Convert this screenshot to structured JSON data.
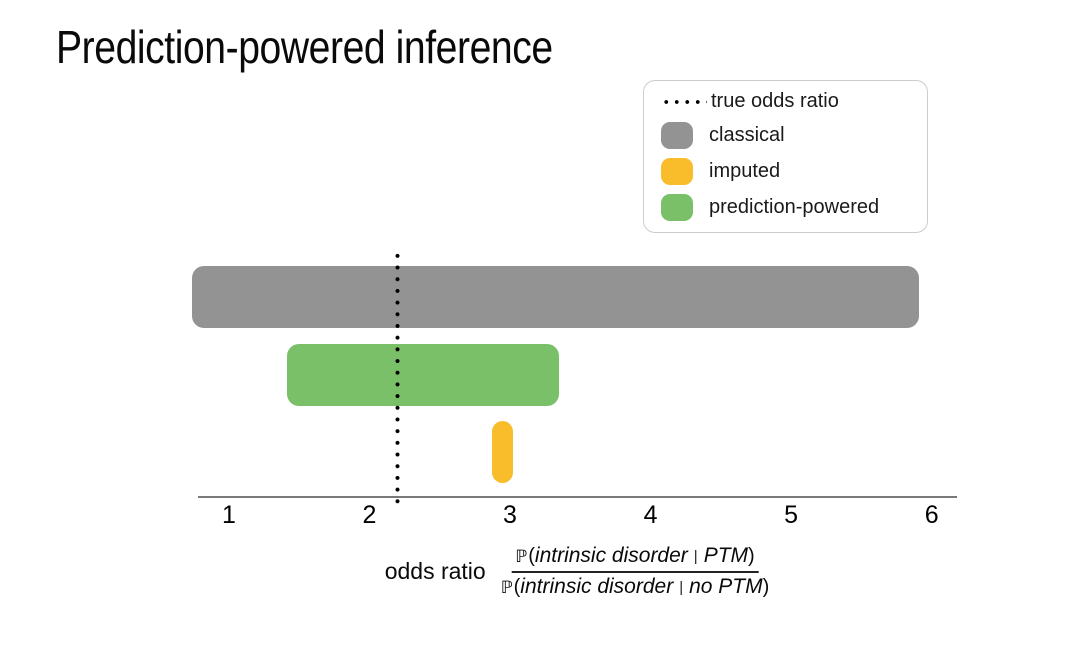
{
  "title": "Prediction-powered inference",
  "legend": {
    "items": [
      {
        "key": "true-odds-ratio",
        "swatch": "dotted",
        "label": "true odds ratio",
        "color": "#000000"
      },
      {
        "key": "classical",
        "swatch": "box",
        "label": "classical",
        "color": "#939393"
      },
      {
        "key": "imputed",
        "swatch": "box",
        "label": "imputed",
        "color": "#f9bd2b"
      },
      {
        "key": "prediction-powered",
        "swatch": "box",
        "label": "prediction-powered",
        "color": "#7ac068"
      }
    ]
  },
  "xlabel": {
    "prefix": "odds ratio",
    "fraction": {
      "prob_symbol": "ℙ",
      "open": "(",
      "close": ")",
      "bar": "|",
      "numerator_body": "intrinsic disorder",
      "numerator_condition": "PTM",
      "denominator_body": "intrinsic disorder",
      "denominator_condition": "no PTM"
    }
  },
  "chart_data": {
    "type": "bar",
    "subtype": "horizontal-confidence-intervals",
    "title": "Prediction-powered inference",
    "xlabel": "odds ratio ℙ(intrinsic disorder | PTM) / ℙ(intrinsic disorder | no PTM)",
    "ylabel": "",
    "x_ticks": [
      1,
      2,
      3,
      4,
      5,
      6
    ],
    "xlim": [
      0.78,
      6.18
    ],
    "grid": false,
    "legend_position": "upper right",
    "true_odds_ratio": 2.2,
    "intervals": [
      {
        "name": "classical",
        "low": 0.74,
        "high": 5.91,
        "color": "#939393"
      },
      {
        "name": "prediction-powered",
        "low": 1.41,
        "high": 3.35,
        "color": "#7ac068"
      },
      {
        "name": "imputed",
        "low": 2.87,
        "high": 3.02,
        "color": "#f9bd2b"
      }
    ]
  }
}
